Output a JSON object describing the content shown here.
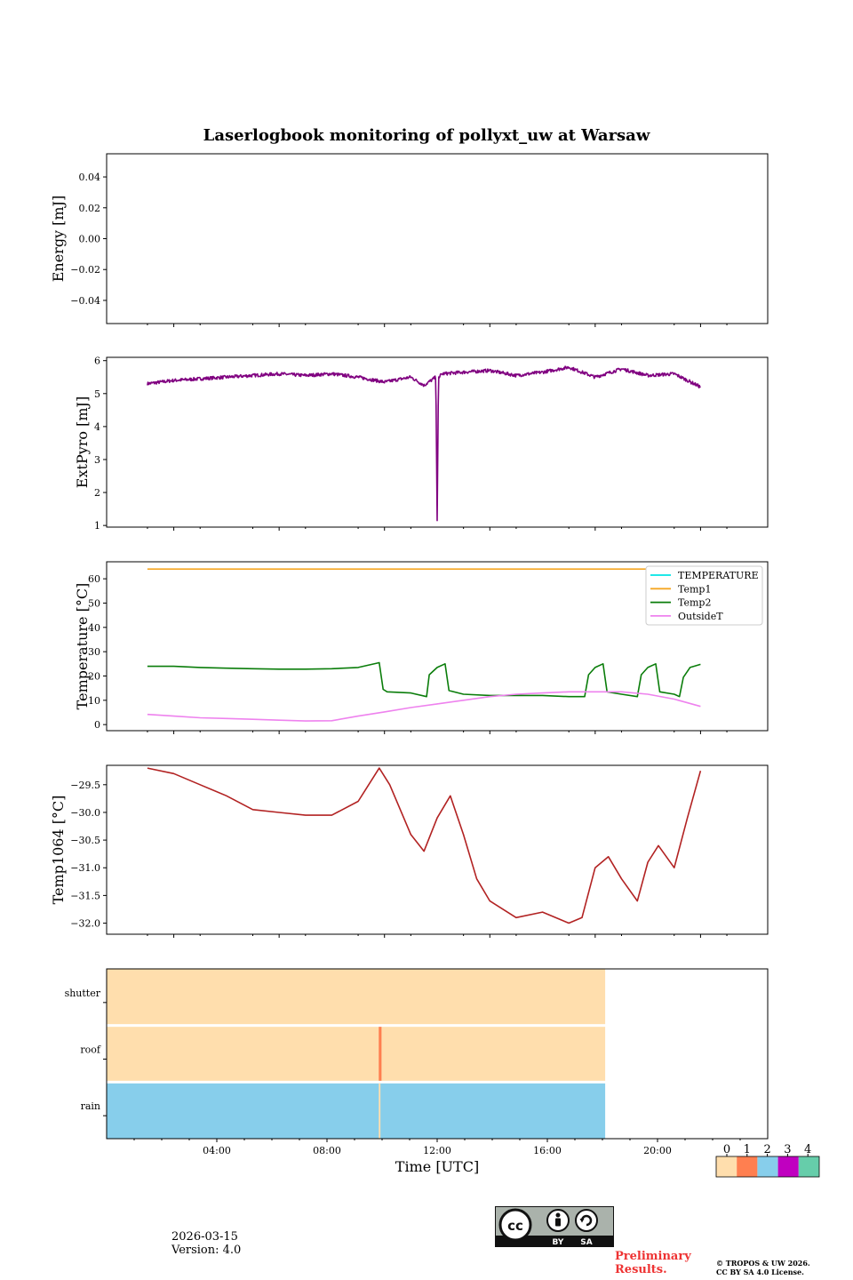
{
  "figure_title": "Laserlogbook monitoring of pollyxt_uw at Warsaw",
  "footer": {
    "date": "2026-03-15",
    "version": "Version: 4.0",
    "preliminary": "Preliminary",
    "results": "Results.",
    "copyright_line1": "© TROPOS & UW 2026.",
    "copyright_line2": "CC BY SA 4.0 License."
  },
  "cc_badge": {
    "by": "BY",
    "sa": "SA",
    "cc": "cc"
  },
  "chart_data": [
    {
      "type": "line",
      "panel": "energy",
      "ylabel": "Energy [mJ]",
      "ylim": [
        -0.055,
        0.055
      ],
      "yticks": [
        0.04,
        0.02,
        0.0,
        -0.02,
        -0.04
      ],
      "ytick_labels": [
        "0.04",
        "0.02",
        "0.00",
        "−0.02",
        "−0.04"
      ],
      "series": []
    },
    {
      "type": "line",
      "panel": "extpyro",
      "ylabel": "ExtPyro [mJ]",
      "ylim": [
        0.95,
        6.1
      ],
      "yticks": [
        1,
        2,
        3,
        4,
        5,
        6
      ],
      "ytick_labels": [
        "1",
        "2",
        "3",
        "4",
        "5",
        "6"
      ],
      "series": [
        {
          "name": "ExtPyro",
          "color": "#800080",
          "x": [
            1.0,
            2.0,
            3.0,
            4.0,
            5.0,
            6.0,
            7.0,
            8.0,
            9.0,
            10.0,
            11.0,
            11.5,
            11.95,
            12.0,
            12.05,
            12.2,
            13.0,
            14.0,
            15.0,
            16.0,
            17.0,
            18.0,
            19.0,
            20.0,
            21.0,
            22.0
          ],
          "y": [
            5.3,
            5.4,
            5.45,
            5.5,
            5.55,
            5.6,
            5.55,
            5.6,
            5.5,
            5.35,
            5.5,
            5.25,
            5.5,
            1.15,
            5.5,
            5.6,
            5.65,
            5.7,
            5.55,
            5.65,
            5.8,
            5.5,
            5.75,
            5.55,
            5.6,
            5.2
          ],
          "noise": 0.05
        }
      ]
    },
    {
      "type": "line",
      "panel": "temperature",
      "ylabel": "Temperature [°C]",
      "ylim": [
        -2.5,
        67
      ],
      "yticks": [
        0,
        10,
        20,
        30,
        40,
        50,
        60
      ],
      "ytick_labels": [
        "0",
        "10",
        "20",
        "30",
        "40",
        "50",
        "60"
      ],
      "legend_position": "top-right",
      "series": [
        {
          "name": "TEMPERATURE",
          "color": "#00e5e5",
          "x": [],
          "y": []
        },
        {
          "name": "Temp1",
          "color": "#f5a623",
          "x": [
            1.0,
            22.0
          ],
          "y": [
            64,
            64
          ]
        },
        {
          "name": "Temp2",
          "color": "#0a7d0a",
          "x": [
            1.0,
            2.0,
            3.0,
            4.0,
            5.0,
            6.0,
            7.0,
            8.0,
            9.0,
            9.8,
            9.95,
            10.1,
            11.0,
            11.6,
            11.7,
            12.0,
            12.3,
            12.45,
            13.0,
            14.0,
            15.0,
            16.0,
            17.0,
            17.6,
            17.75,
            18.0,
            18.3,
            18.45,
            19.0,
            19.6,
            19.75,
            20.0,
            20.3,
            20.45,
            21.0,
            21.2,
            21.35,
            21.6,
            22.0
          ],
          "y": [
            24.0,
            24.0,
            23.5,
            23.2,
            23.0,
            22.8,
            22.8,
            23.0,
            23.5,
            25.5,
            14.5,
            13.5,
            13.0,
            11.5,
            20.5,
            23.5,
            25.0,
            14.0,
            12.5,
            12.0,
            12.0,
            12.0,
            11.5,
            11.5,
            20.5,
            23.5,
            25.0,
            13.5,
            12.5,
            11.5,
            20.5,
            23.5,
            25.0,
            13.5,
            12.5,
            11.5,
            19.5,
            23.5,
            24.8
          ]
        },
        {
          "name": "OutsideT",
          "color": "#ee82ee",
          "x": [
            1.0,
            2.0,
            3.0,
            4.0,
            5.0,
            6.0,
            7.0,
            8.0,
            9.0,
            10.0,
            11.0,
            12.0,
            13.0,
            14.0,
            15.0,
            16.0,
            17.0,
            18.0,
            19.0,
            20.0,
            21.0,
            22.0
          ],
          "y": [
            4.2,
            3.5,
            2.8,
            2.5,
            2.2,
            1.8,
            1.5,
            1.6,
            3.5,
            5.2,
            7.0,
            8.5,
            10.0,
            11.5,
            12.5,
            13.0,
            13.5,
            13.5,
            13.5,
            12.5,
            10.5,
            7.5
          ]
        }
      ]
    },
    {
      "type": "line",
      "panel": "temp1064",
      "ylabel": "Temp1064 [°C]",
      "ylim": [
        -32.2,
        -29.15
      ],
      "yticks": [
        -29.5,
        -30.0,
        -30.5,
        -31.0,
        -31.5,
        -32.0
      ],
      "ytick_labels": [
        "−29.5",
        "−30.0",
        "−30.5",
        "−31.0",
        "−31.5",
        "−32.0"
      ],
      "series": [
        {
          "name": "Temp1064",
          "color": "#b22222",
          "x": [
            1.0,
            2.0,
            3.0,
            4.0,
            5.0,
            6.0,
            7.0,
            8.0,
            9.0,
            9.8,
            10.2,
            11.0,
            11.5,
            12.0,
            12.5,
            13.0,
            13.5,
            14.0,
            15.0,
            16.0,
            17.0,
            17.5,
            18.0,
            18.5,
            19.0,
            19.6,
            20.0,
            20.4,
            21.0,
            21.5,
            22.0
          ],
          "y": [
            -29.2,
            -29.3,
            -29.5,
            -29.7,
            -29.95,
            -30.0,
            -30.05,
            -30.05,
            -29.8,
            -29.2,
            -29.5,
            -30.4,
            -30.7,
            -30.1,
            -29.7,
            -30.4,
            -31.2,
            -31.6,
            -31.9,
            -31.8,
            -32.0,
            -31.9,
            -31.0,
            -30.8,
            -31.2,
            -31.6,
            -30.9,
            -30.6,
            -31.0,
            -30.1,
            -29.25
          ]
        }
      ]
    },
    {
      "type": "heatmap",
      "panel": "status",
      "rows": [
        "shutter",
        "roof",
        "rain"
      ],
      "xlabel": "Time [UTC]",
      "xlim": [
        0.0,
        24.0
      ],
      "xticks": [
        4,
        8,
        12,
        16,
        20
      ],
      "xtick_labels": [
        "04:00",
        "08:00",
        "12:00",
        "16:00",
        "20:00"
      ],
      "data_end_hour": 18.1,
      "segments": [
        {
          "row": "shutter",
          "start": 0.0,
          "end": 18.1,
          "value": 0
        },
        {
          "row": "roof",
          "start": 0.0,
          "end": 18.1,
          "value": 0
        },
        {
          "row": "roof",
          "start": 9.88,
          "end": 9.98,
          "value": 1
        },
        {
          "row": "rain",
          "start": 0.0,
          "end": 18.1,
          "value": 2
        },
        {
          "row": "rain",
          "start": 9.88,
          "end": 9.94,
          "value": 0
        }
      ],
      "colorbar": {
        "labels": [
          "0",
          "1",
          "2",
          "3",
          "4"
        ],
        "colors": [
          "#ffdead",
          "#ff7f50",
          "#87ceeb",
          "#c000c0",
          "#66cdaa"
        ]
      }
    }
  ]
}
